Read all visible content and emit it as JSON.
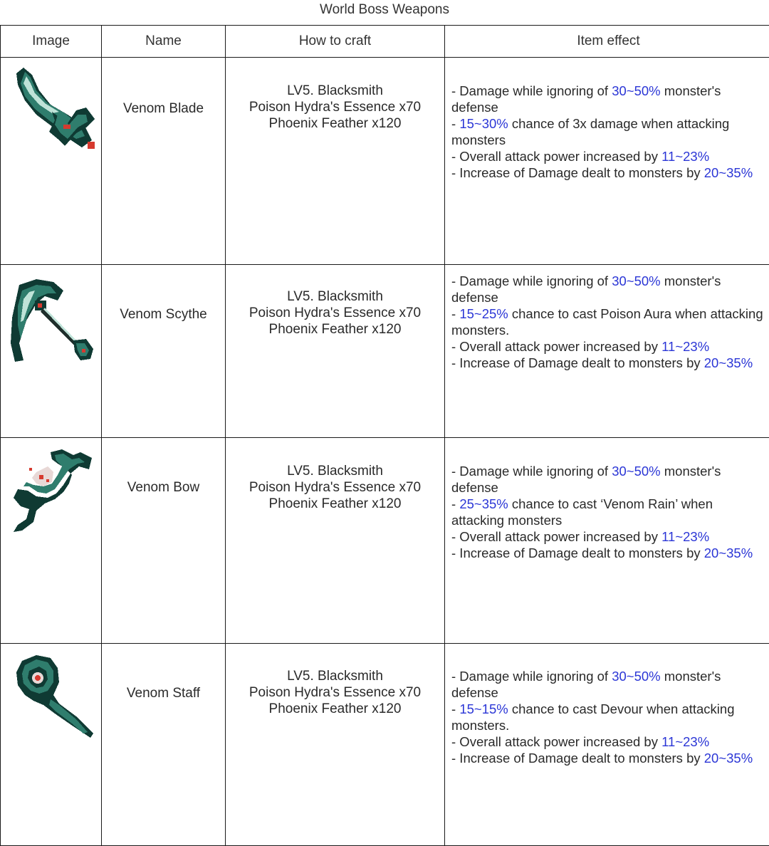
{
  "caption": "World Boss Weapons",
  "headers": [
    "Image",
    "Name",
    "How to craft",
    "Item effect"
  ],
  "colors": {
    "highlight": "#2b36d6",
    "sprite_dark": "#0f3a33",
    "sprite_mid": "#2f7d6d",
    "sprite_light": "#bfe3d8",
    "sprite_red": "#d63a2f"
  },
  "rows": [
    {
      "name": "Venom Blade",
      "icon": "venom-blade-icon",
      "craft": [
        "LV5. Blacksmith",
        "Poison Hydra's Essence x70",
        "Phoenix Feather x120"
      ],
      "effects": [
        {
          "pre": "- Damage while ignoring of ",
          "hl": "30~50%",
          "post": " monster's defense"
        },
        {
          "pre": "- ",
          "hl": "15~30%",
          "post": " chance of 3x damage when attacking monsters"
        },
        {
          "pre": "- Overall attack power increased by ",
          "hl": "11~23%",
          "post": ""
        },
        {
          "pre": "- Increase of Damage dealt to monsters by ",
          "hl": "20~35%",
          "post": ""
        }
      ]
    },
    {
      "name": "Venom Scythe",
      "icon": "venom-scythe-icon",
      "craft": [
        "LV5. Blacksmith",
        "Poison Hydra's Essence x70",
        "Phoenix Feather x120"
      ],
      "effects": [
        {
          "pre": "- Damage while ignoring of ",
          "hl": "30~50%",
          "post": " monster's defense"
        },
        {
          "pre": "- ",
          "hl": "15~25%",
          "post": " chance to cast Poison Aura when attacking monsters."
        },
        {
          "pre": "- Overall attack power increased by ",
          "hl": "11~23%",
          "post": ""
        },
        {
          "pre": "- Increase of Damage dealt to monsters by ",
          "hl": "20~35%",
          "post": ""
        }
      ]
    },
    {
      "name": "Venom Bow",
      "icon": "venom-bow-icon",
      "craft": [
        "LV5. Blacksmith",
        "Poison Hydra's Essence x70",
        "Phoenix Feather x120"
      ],
      "effects": [
        {
          "pre": "- Damage while ignoring of ",
          "hl": "30~50%",
          "post": " monster's defense"
        },
        {
          "pre": "- ",
          "hl": "25~35%",
          "post": " chance to cast ‘Venom Rain’ when attacking monsters"
        },
        {
          "pre": "- Overall attack power increased by ",
          "hl": "11~23%",
          "post": ""
        },
        {
          "pre": "- Increase of Damage dealt to monsters by ",
          "hl": "20~35%",
          "post": ""
        }
      ]
    },
    {
      "name": "Venom Staff",
      "icon": "venom-staff-icon",
      "craft": [
        "LV5. Blacksmith",
        "Poison Hydra's Essence x70",
        "Phoenix Feather x120"
      ],
      "effects": [
        {
          "pre": "- Damage while ignoring of ",
          "hl": "30~50%",
          "post": " monster's defense"
        },
        {
          "pre": "- ",
          "hl": "15~15%",
          "post": " chance to cast Devour when attacking monsters."
        },
        {
          "pre": "- Overall attack power increased by ",
          "hl": "11~23%",
          "post": ""
        },
        {
          "pre": "- Increase of Damage dealt to monsters by ",
          "hl": "20~35%",
          "post": ""
        }
      ]
    }
  ]
}
